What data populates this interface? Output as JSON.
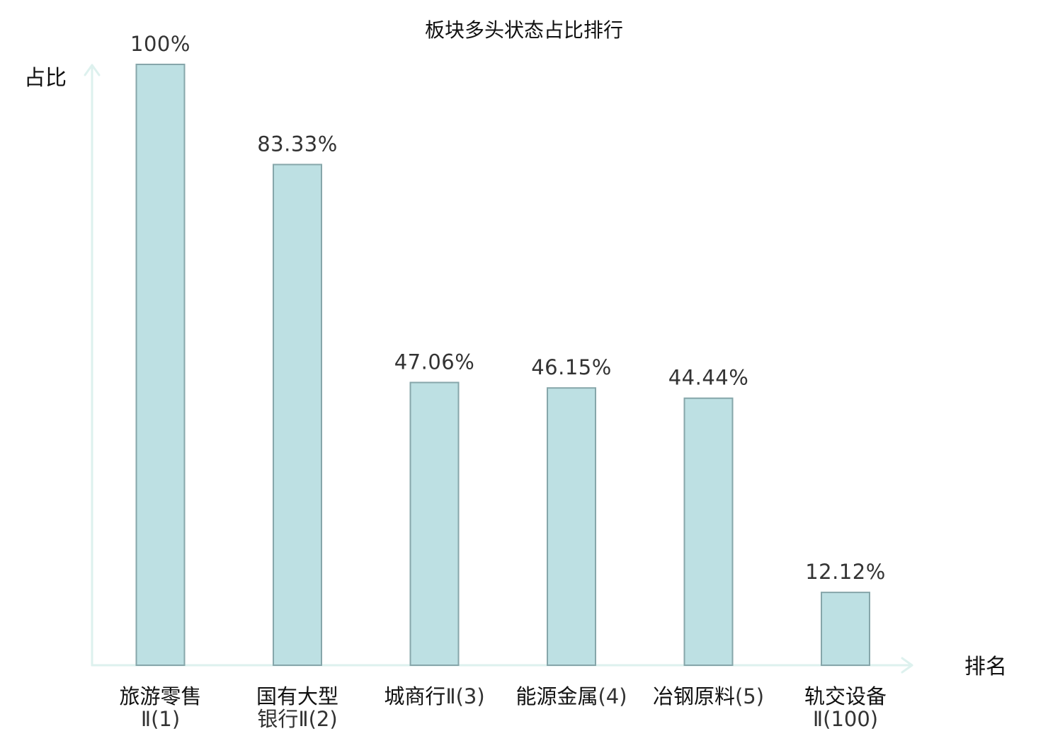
{
  "chart_data": {
    "type": "bar",
    "title": "板块多头状态占比排行",
    "ylabel": "占比",
    "xlabel": "排名",
    "ylim": [
      0,
      100
    ],
    "unit": "%",
    "categories": [
      {
        "name": "旅游零售",
        "rank": "Ⅱ(1)",
        "highlight": false
      },
      {
        "name": "国有大型",
        "rank": "银行Ⅱ(2)",
        "highlight": false
      },
      {
        "name": "城商行",
        "rank": "Ⅱ(3)",
        "highlight": false
      },
      {
        "name": "能源金属",
        "rank": "(4)",
        "highlight": false
      },
      {
        "name": "冶钢原料",
        "rank": "(5)",
        "highlight": false
      },
      {
        "name": "轨交设备",
        "rank": "Ⅱ(100)",
        "highlight": true
      }
    ],
    "values": [
      100,
      83.33,
      47.06,
      46.15,
      44.44,
      12.12
    ],
    "value_labels": [
      "100%",
      "83.33%",
      "47.06%",
      "46.15%",
      "44.44%",
      "12.12%"
    ],
    "grid": false,
    "colors": {
      "bar_fill": "#bde0e3",
      "bar_stroke": "#86a6aa",
      "axis": "#ddf1ee",
      "highlight_text": "#e02020",
      "text": "#111111"
    }
  }
}
